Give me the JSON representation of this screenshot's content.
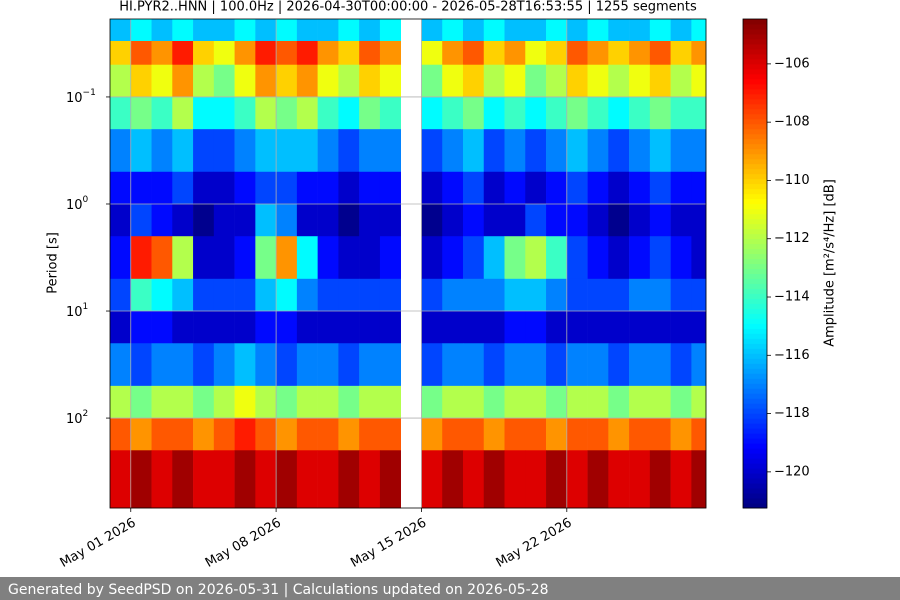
{
  "chart_data": {
    "type": "heatmap",
    "title": "HI.PYR2..HNN | 100.0Hz | 2026-04-30T00:00:00 - 2026-05-28T16:53:55 | 1255 segments",
    "ylabel": "Period [s]",
    "colorbar_label": "Amplitude [m²/s⁴/Hz] [dB]",
    "footer": "Generated by SeedPSD on 2026-05-31 | Calculations updated on 2026-05-28",
    "colormap": "jet",
    "clim": [
      -121.24,
      -104.46
    ],
    "cticks": [
      {
        "value": -106,
        "label": "−106"
      },
      {
        "value": -108,
        "label": "−108"
      },
      {
        "value": -110,
        "label": "−110"
      },
      {
        "value": -112,
        "label": "−112"
      },
      {
        "value": -114,
        "label": "−114"
      },
      {
        "value": -116,
        "label": "−116"
      },
      {
        "value": -118,
        "label": "−118"
      },
      {
        "value": -120,
        "label": "−120"
      }
    ],
    "xlim": [
      "2026-04-30T00:00:00",
      "2026-05-28T16:53:55"
    ],
    "xticks": [
      {
        "value": "2026-05-01",
        "label": "May 01 2026"
      },
      {
        "value": "2026-05-08",
        "label": "May 08 2026"
      },
      {
        "value": "2026-05-15",
        "label": "May 15 2026"
      },
      {
        "value": "2026-05-22",
        "label": "May 22 2026"
      }
    ],
    "yscale": "log",
    "y_inverted": true,
    "ylim": [
      0.0187,
      692
    ],
    "yticks": [
      {
        "value": 0.1,
        "label": "10",
        "exponent": "−1"
      },
      {
        "value": 1,
        "label": "10",
        "exponent": "0"
      },
      {
        "value": 10,
        "label": "10",
        "exponent": "1"
      },
      {
        "value": 100,
        "label": "10",
        "exponent": "2"
      }
    ],
    "grid": true,
    "x": [
      "2026-04-30",
      "2026-05-01",
      "2026-05-02",
      "2026-05-03",
      "2026-05-04",
      "2026-05-05",
      "2026-05-06",
      "2026-05-07",
      "2026-05-08",
      "2026-05-09",
      "2026-05-10",
      "2026-05-11",
      "2026-05-12",
      "2026-05-13",
      "2026-05-14",
      "2026-05-15",
      "2026-05-16",
      "2026-05-17",
      "2026-05-18",
      "2026-05-19",
      "2026-05-20",
      "2026-05-21",
      "2026-05-22",
      "2026-05-23",
      "2026-05-24",
      "2026-05-25",
      "2026-05-26",
      "2026-05-27",
      "2026-05-28"
    ],
    "y_edges": [
      0.0187,
      0.03,
      0.05,
      0.1,
      0.2,
      0.5,
      1,
      2,
      5,
      10,
      20,
      50,
      100,
      200,
      692
    ],
    "z": [
      [
        -116,
        -115,
        -116,
        -115,
        -116,
        -116,
        -115,
        -116,
        -115,
        -116,
        -116,
        -115,
        -116,
        -115,
        null,
        -116,
        -115,
        -116,
        -115,
        -116,
        -116,
        -115,
        -116,
        -115,
        -116,
        -116,
        -115,
        -116,
        -115
      ],
      [
        -110,
        -108,
        -109,
        -107,
        -110,
        -111,
        -109,
        -107,
        -108,
        -107,
        -109,
        -110,
        -108,
        -109,
        null,
        -111,
        -109,
        -108,
        -110,
        -109,
        -111,
        -110,
        -108,
        -109,
        -110,
        -109,
        -108,
        -110,
        -109
      ],
      [
        -112,
        -110,
        -111,
        -109,
        -112,
        -113,
        -111,
        -109,
        -110,
        -109,
        -111,
        -112,
        -110,
        -111,
        null,
        -113,
        -111,
        -110,
        -112,
        -111,
        -113,
        -112,
        -110,
        -111,
        -112,
        -111,
        -110,
        -112,
        -111
      ],
      [
        -114,
        -113,
        -114,
        -112,
        -115,
        -115,
        -114,
        -112,
        -113,
        -112,
        -114,
        -115,
        -113,
        -114,
        null,
        -115,
        -114,
        -113,
        -115,
        -114,
        -115,
        -114,
        -113,
        -114,
        -115,
        -114,
        -113,
        -114,
        -114
      ],
      [
        -117,
        -116,
        -117,
        -116,
        -118,
        -118,
        -117,
        -116,
        -116,
        -116,
        -117,
        -118,
        -117,
        -117,
        null,
        -118,
        -117,
        -116,
        -118,
        -117,
        -118,
        -117,
        -116,
        -117,
        -118,
        -117,
        -116,
        -117,
        -117
      ],
      [
        -119,
        -119,
        -119,
        -118,
        -120,
        -120,
        -119,
        -118,
        -118,
        -119,
        -119,
        -120,
        -119,
        -119,
        null,
        -120,
        -119,
        -118,
        -120,
        -119,
        -120,
        -119,
        -118,
        -119,
        -120,
        -119,
        -118,
        -119,
        -119
      ],
      [
        -120,
        -118,
        -119,
        -120,
        -121,
        -120,
        -120,
        -116,
        -117,
        -120,
        -120,
        -121,
        -120,
        -120,
        null,
        -121,
        -120,
        -119,
        -120,
        -120,
        -118,
        -119,
        -119,
        -120,
        -121,
        -120,
        -119,
        -120,
        -120
      ],
      [
        -119,
        -107,
        -108,
        -112,
        -120,
        -120,
        -119,
        -113,
        -109,
        -115,
        -119,
        -120,
        -120,
        -119,
        null,
        -120,
        -119,
        -118,
        -116,
        -113,
        -112,
        -114,
        -118,
        -119,
        -120,
        -119,
        -118,
        -119,
        -120
      ],
      [
        -118,
        -114,
        -115,
        -116,
        -118,
        -118,
        -118,
        -116,
        -115,
        -117,
        -118,
        -118,
        -118,
        -118,
        null,
        -118,
        -117,
        -117,
        -117,
        -116,
        -116,
        -117,
        -118,
        -118,
        -118,
        -117,
        -117,
        -118,
        -118
      ],
      [
        -120,
        -119,
        -119,
        -120,
        -120,
        -120,
        -120,
        -119,
        -119,
        -120,
        -120,
        -120,
        -120,
        -120,
        null,
        -120,
        -120,
        -120,
        -120,
        -119,
        -119,
        -120,
        -120,
        -120,
        -120,
        -120,
        -120,
        -120,
        -120
      ],
      [
        -117,
        -118,
        -117,
        -117,
        -118,
        -117,
        -116,
        -117,
        -118,
        -117,
        -117,
        -118,
        -117,
        -117,
        null,
        -118,
        -117,
        -117,
        -118,
        -117,
        -117,
        -118,
        -117,
        -117,
        -118,
        -117,
        -117,
        -118,
        -117
      ],
      [
        -112,
        -113,
        -112,
        -112,
        -113,
        -112,
        -111,
        -112,
        -113,
        -112,
        -112,
        -113,
        -112,
        -112,
        null,
        -113,
        -112,
        -112,
        -113,
        -112,
        -112,
        -113,
        -112,
        -112,
        -113,
        -112,
        -112,
        -113,
        -112
      ],
      [
        -108,
        -109,
        -108,
        -108,
        -109,
        -108,
        -107,
        -108,
        -109,
        -108,
        -108,
        -109,
        -108,
        -108,
        null,
        -109,
        -108,
        -108,
        -109,
        -108,
        -108,
        -109,
        -108,
        -108,
        -109,
        -108,
        -108,
        -109,
        -108
      ],
      [
        -106,
        -105,
        -106,
        -105,
        -106,
        -106,
        -105,
        -106,
        -105,
        -106,
        -106,
        -105,
        -106,
        -105,
        null,
        -106,
        -105,
        -106,
        -105,
        -106,
        -106,
        -105,
        -106,
        -105,
        -106,
        -106,
        -105,
        -106,
        -105
      ]
    ]
  }
}
